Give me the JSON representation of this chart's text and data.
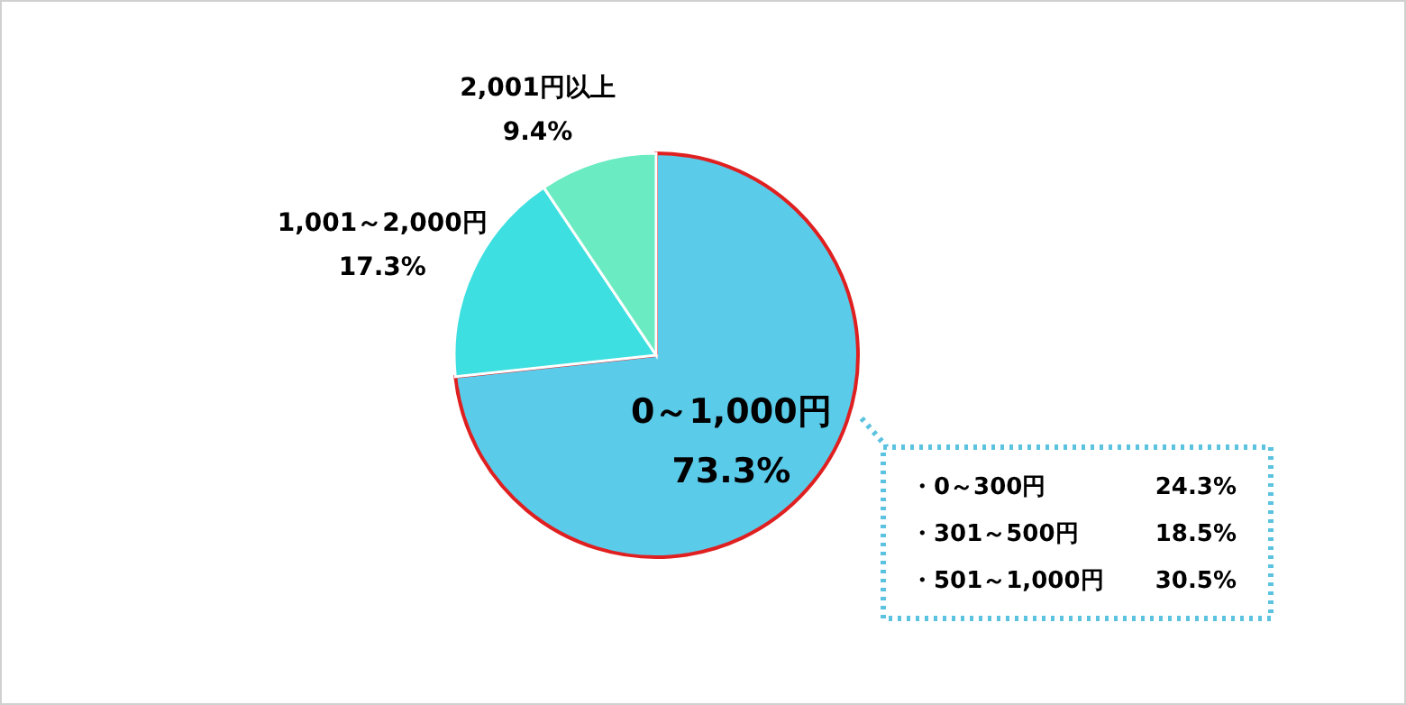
{
  "chart_data": {
    "type": "pie",
    "categories": [
      "0～1,000円",
      "1,001～2,000円",
      "2,001円以上"
    ],
    "values": [
      73.3,
      17.3,
      9.4
    ],
    "value_labels": [
      "73.3%",
      "17.3%",
      "9.4%"
    ],
    "colors": [
      "#5bcbea",
      "#3ddfe0",
      "#6bebc2"
    ],
    "annotations": [
      "・0～300円",
      "24.3%",
      "・301～500円",
      "18.5%",
      "・501～1,000円",
      "30.5%"
    ]
  }
}
